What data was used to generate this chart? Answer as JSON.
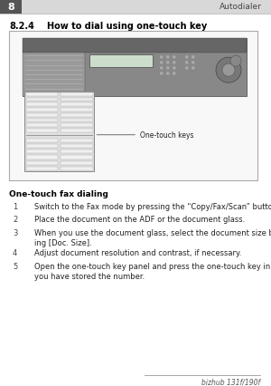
{
  "bg_color": "#ffffff",
  "header_num": "8",
  "header_title": "Autodialer",
  "section_num": "8.2.4",
  "section_title": "How to dial using one-touch key",
  "bold_heading": "One-touch fax dialing",
  "steps": [
    {
      "num": "1",
      "text": "Switch to the Fax mode by pressing the “Copy/Fax/Scan” button."
    },
    {
      "num": "2",
      "text": "Place the document on the ADF or the document glass."
    },
    {
      "num": "3",
      "text": "When you use the document glass, select the document size by press-\ning [Doc. Size]."
    },
    {
      "num": "4",
      "text": "Adjust document resolution and contrast, if necessary."
    },
    {
      "num": "5",
      "text": "Open the one-touch key panel and press the one-touch key in which\nyou have stored the number."
    }
  ],
  "annotation_text": "One-touch keys",
  "footer_text": "bizhub 131f/190f"
}
